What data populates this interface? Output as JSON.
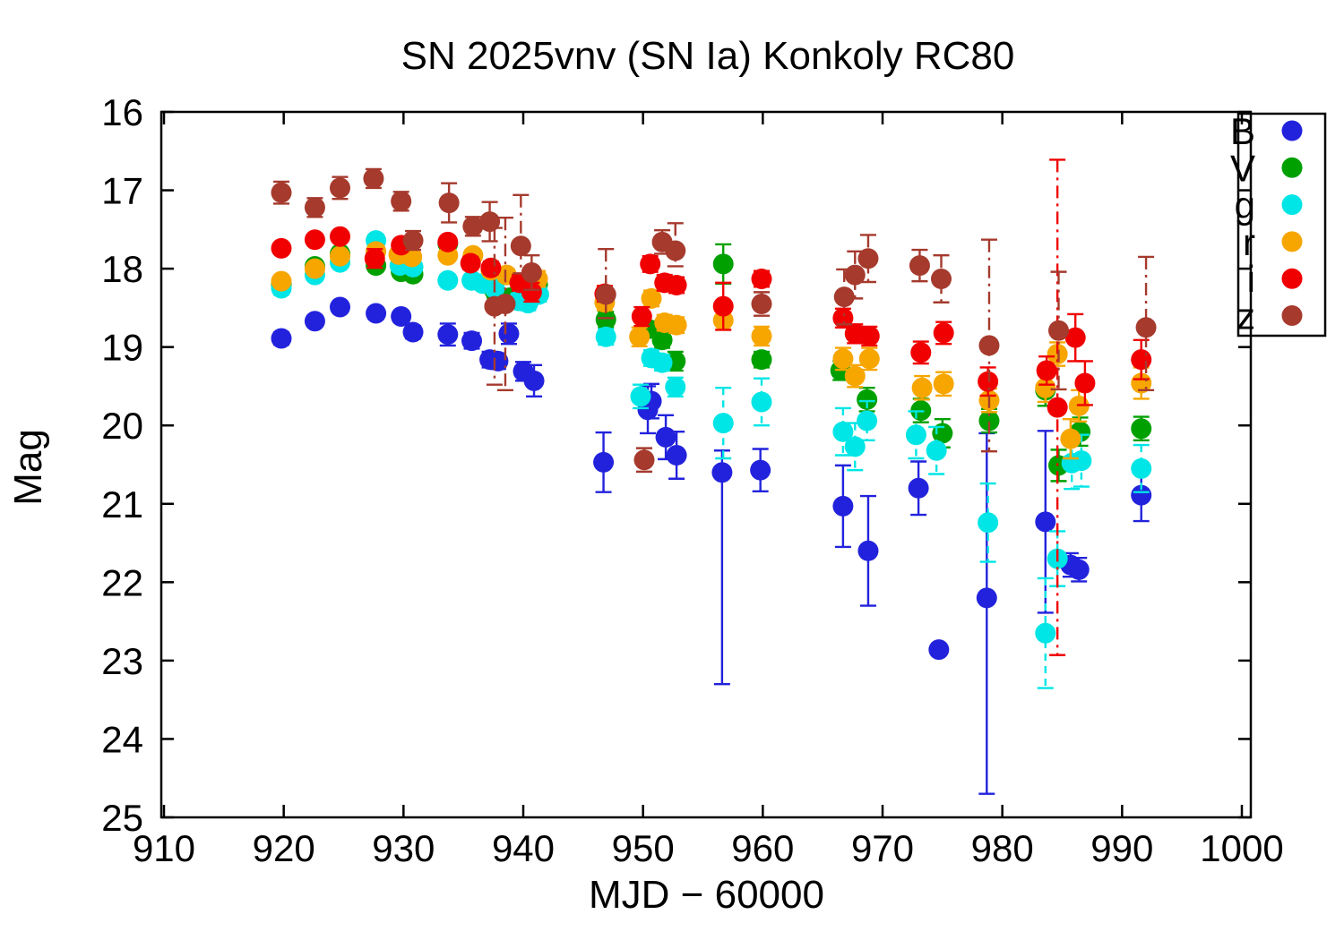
{
  "chart_data": {
    "type": "scatter",
    "title": "SN 2025vnv (SN Ia) Konkoly RC80",
    "xlabel": "MJD − 60000",
    "ylabel": "Mag",
    "x_axis": {
      "min": 910,
      "max": 1000.9,
      "ticks": [
        910,
        920,
        930,
        940,
        950,
        960,
        970,
        980,
        990,
        1000
      ]
    },
    "y_axis": {
      "min": 16,
      "max": 25,
      "ticks": [
        16,
        17,
        18,
        19,
        20,
        21,
        22,
        23,
        24,
        25
      ],
      "inverted": true,
      "note": "magnitude axis, bright at top"
    },
    "grid": false,
    "legend_position": "top-right-inside",
    "point_format": "[mjd_minus_60000, mag, err_down, err_up_optional]",
    "series": [
      {
        "name": "B",
        "color": "#2222dd",
        "err_style": "solid",
        "points": [
          [
            919.8,
            18.89,
            0.08
          ],
          [
            922.6,
            18.67,
            0.07
          ],
          [
            924.7,
            18.49,
            0.07
          ],
          [
            927.7,
            18.57,
            0.07
          ],
          [
            929.8,
            18.61,
            0.07
          ],
          [
            930.8,
            18.81,
            0.08
          ],
          [
            933.7,
            18.84,
            0.14
          ],
          [
            935.7,
            18.92,
            0.1
          ],
          [
            937.2,
            19.16,
            0.1
          ],
          [
            937.9,
            19.18,
            0.1
          ],
          [
            938.8,
            18.83,
            0.13
          ],
          [
            940.0,
            19.31,
            0.12
          ],
          [
            940.9,
            19.43,
            0.2
          ],
          [
            946.7,
            20.47,
            0.38
          ],
          [
            950.4,
            19.8,
            0.3
          ],
          [
            950.7,
            19.69,
            0.22
          ],
          [
            951.9,
            20.15,
            0.28
          ],
          [
            952.8,
            20.38,
            0.3
          ],
          [
            956.6,
            20.6,
            2.7,
            0.28
          ],
          [
            959.8,
            20.57,
            0.27
          ],
          [
            966.7,
            21.03,
            0.52
          ],
          [
            968.8,
            21.6,
            0.7
          ],
          [
            973.0,
            20.8,
            0.34
          ],
          [
            974.7,
            22.86,
            0.05
          ],
          [
            978.7,
            22.2,
            2.5,
            2.1
          ],
          [
            983.6,
            21.23,
            1.16
          ],
          [
            985.7,
            21.78,
            0.15
          ],
          [
            986.4,
            21.84,
            0.15
          ],
          [
            991.6,
            20.89,
            0.33
          ]
        ]
      },
      {
        "name": "V",
        "color": "#00a000",
        "err_style": "solid",
        "points": [
          [
            919.8,
            18.2,
            0.07
          ],
          [
            922.6,
            17.97,
            0.06
          ],
          [
            924.7,
            17.81,
            0.06
          ],
          [
            927.7,
            17.96,
            0.06
          ],
          [
            929.8,
            18.04,
            0.06
          ],
          [
            930.8,
            18.07,
            0.06
          ],
          [
            933.7,
            17.68,
            0.08
          ],
          [
            937.6,
            18.28,
            0.09
          ],
          [
            938.9,
            18.37,
            0.09
          ],
          [
            941.2,
            18.2,
            0.09
          ],
          [
            946.9,
            18.65,
            0.1
          ],
          [
            950.4,
            18.77,
            0.1
          ],
          [
            951.6,
            18.91,
            0.1
          ],
          [
            952.7,
            19.18,
            0.12
          ],
          [
            956.7,
            17.94,
            0.25
          ],
          [
            959.9,
            19.16,
            0.1
          ],
          [
            966.5,
            19.3,
            0.12
          ],
          [
            968.7,
            19.67,
            0.15
          ],
          [
            973.2,
            19.81,
            0.15
          ],
          [
            975.0,
            20.1,
            0.18
          ],
          [
            978.9,
            19.94,
            0.15
          ],
          [
            983.6,
            19.55,
            0.2
          ],
          [
            984.7,
            20.51,
            0.2
          ],
          [
            986.5,
            20.08,
            0.18
          ],
          [
            991.6,
            20.04,
            0.15
          ]
        ]
      },
      {
        "name": "g",
        "color": "#00e5e5",
        "err_style": "dashed",
        "points": [
          [
            919.8,
            18.25,
            0.08
          ],
          [
            922.6,
            18.08,
            0.07
          ],
          [
            924.7,
            17.92,
            0.07
          ],
          [
            927.7,
            17.64,
            0.07
          ],
          [
            929.7,
            17.96,
            0.07
          ],
          [
            930.8,
            17.98,
            0.07
          ],
          [
            933.7,
            18.15,
            0.07
          ],
          [
            935.7,
            18.15,
            0.07
          ],
          [
            936.6,
            18.19,
            0.07
          ],
          [
            937.6,
            18.25,
            0.08
          ],
          [
            939.6,
            18.41,
            0.09
          ],
          [
            940.4,
            18.44,
            0.09
          ],
          [
            941.3,
            18.33,
            0.09
          ],
          [
            946.9,
            18.87,
            0.1
          ],
          [
            949.8,
            19.63,
            0.15
          ],
          [
            950.7,
            19.14,
            0.1
          ],
          [
            951.6,
            19.2,
            0.1
          ],
          [
            952.7,
            19.51,
            0.12
          ],
          [
            956.7,
            19.97,
            0.45
          ],
          [
            959.9,
            19.7,
            0.3
          ],
          [
            966.7,
            20.08,
            0.3
          ],
          [
            967.7,
            20.27,
            0.3
          ],
          [
            968.7,
            19.94,
            0.25
          ],
          [
            972.8,
            20.12,
            0.3
          ],
          [
            974.5,
            20.32,
            0.3
          ],
          [
            978.8,
            21.24,
            0.5
          ],
          [
            983.6,
            22.65,
            0.7
          ],
          [
            984.6,
            21.7,
            0.35
          ],
          [
            985.8,
            20.48,
            0.33
          ],
          [
            986.6,
            20.45,
            0.33
          ],
          [
            991.6,
            20.55,
            0.3
          ]
        ]
      },
      {
        "name": "r",
        "color": "#f7a600",
        "err_style": "solid",
        "points": [
          [
            919.8,
            18.16,
            0.06
          ],
          [
            922.6,
            18.0,
            0.06
          ],
          [
            924.7,
            17.84,
            0.06
          ],
          [
            927.7,
            17.78,
            0.08
          ],
          [
            929.6,
            17.82,
            0.06
          ],
          [
            930.7,
            17.85,
            0.06
          ],
          [
            933.7,
            17.83,
            0.06
          ],
          [
            935.8,
            17.83,
            0.06
          ],
          [
            937.3,
            18.02,
            0.08
          ],
          [
            938.6,
            18.08,
            0.08
          ],
          [
            941.2,
            18.13,
            0.1
          ],
          [
            946.8,
            18.43,
            0.1
          ],
          [
            949.7,
            18.87,
            0.12
          ],
          [
            950.7,
            18.38,
            0.1
          ],
          [
            951.8,
            18.69,
            0.1
          ],
          [
            952.8,
            18.72,
            0.1
          ],
          [
            956.7,
            18.66,
            0.12
          ],
          [
            959.9,
            18.86,
            0.12
          ],
          [
            966.7,
            19.15,
            0.14
          ],
          [
            967.7,
            19.37,
            0.14
          ],
          [
            968.9,
            19.15,
            0.14
          ],
          [
            973.3,
            19.52,
            0.15
          ],
          [
            975.1,
            19.47,
            0.15
          ],
          [
            978.9,
            19.68,
            0.15
          ],
          [
            983.6,
            19.52,
            0.18
          ],
          [
            984.6,
            19.09,
            0.15
          ],
          [
            985.7,
            20.17,
            0.25
          ],
          [
            986.4,
            19.75,
            0.2
          ],
          [
            991.6,
            19.46,
            0.2
          ]
        ]
      },
      {
        "name": "i",
        "color": "#f00000",
        "err_style": "dashdot-when-large",
        "points": [
          [
            919.8,
            17.74,
            0.07
          ],
          [
            922.6,
            17.63,
            0.06
          ],
          [
            924.7,
            17.59,
            0.06
          ],
          [
            927.6,
            17.87,
            0.12
          ],
          [
            929.8,
            17.7,
            0.07
          ],
          [
            933.7,
            17.66,
            0.07
          ],
          [
            935.6,
            17.93,
            0.08
          ],
          [
            937.3,
            17.99,
            0.08
          ],
          [
            939.7,
            18.18,
            0.1
          ],
          [
            940.7,
            18.3,
            0.12
          ],
          [
            946.8,
            18.32,
            0.1
          ],
          [
            949.9,
            18.61,
            0.12
          ],
          [
            950.6,
            17.94,
            0.1
          ],
          [
            951.8,
            18.18,
            0.1
          ],
          [
            952.8,
            18.21,
            0.1
          ],
          [
            956.7,
            18.48,
            0.3
          ],
          [
            959.9,
            18.13,
            0.1
          ],
          [
            966.7,
            18.63,
            0.12
          ],
          [
            967.7,
            18.83,
            0.12
          ],
          [
            968.9,
            18.86,
            0.12
          ],
          [
            973.2,
            19.07,
            0.14
          ],
          [
            975.1,
            18.82,
            0.14
          ],
          [
            978.8,
            19.44,
            0.18
          ],
          [
            983.7,
            19.3,
            0.18
          ],
          [
            984.6,
            19.77,
            3.16
          ],
          [
            986.1,
            18.88,
            0.3
          ],
          [
            986.9,
            19.46,
            0.28
          ],
          [
            991.6,
            19.16,
            0.25
          ]
        ]
      },
      {
        "name": "z",
        "color": "#a53a2d",
        "err_style": "dashdot",
        "points": [
          [
            919.8,
            17.03,
            0.14
          ],
          [
            922.6,
            17.22,
            0.12
          ],
          [
            924.7,
            16.97,
            0.14
          ],
          [
            927.5,
            16.85,
            0.12
          ],
          [
            929.8,
            17.14,
            0.12
          ],
          [
            930.8,
            17.64,
            0.12
          ],
          [
            933.8,
            17.16,
            0.25
          ],
          [
            935.8,
            17.46,
            0.12
          ],
          [
            937.2,
            17.4,
            0.25
          ],
          [
            937.6,
            18.48,
            1.0
          ],
          [
            938.5,
            18.45,
            1.1
          ],
          [
            939.8,
            17.71,
            0.35,
            0.65
          ],
          [
            940.7,
            18.05,
            0.22
          ],
          [
            946.9,
            18.33,
            0.3,
            0.58
          ],
          [
            950.1,
            20.44,
            0.15
          ],
          [
            951.6,
            17.66,
            0.15
          ],
          [
            952.7,
            17.77,
            0.2,
            0.35
          ],
          [
            959.9,
            18.45,
            0.15
          ],
          [
            966.8,
            18.36,
            0.35
          ],
          [
            967.7,
            18.08,
            0.3
          ],
          [
            968.8,
            17.87,
            0.3
          ],
          [
            973.1,
            17.96,
            0.2
          ],
          [
            974.9,
            18.13,
            0.3
          ],
          [
            978.9,
            18.98,
            1.35
          ],
          [
            984.7,
            18.79,
            0.75
          ],
          [
            992.0,
            18.75,
            0.8,
            0.9
          ]
        ]
      }
    ]
  }
}
